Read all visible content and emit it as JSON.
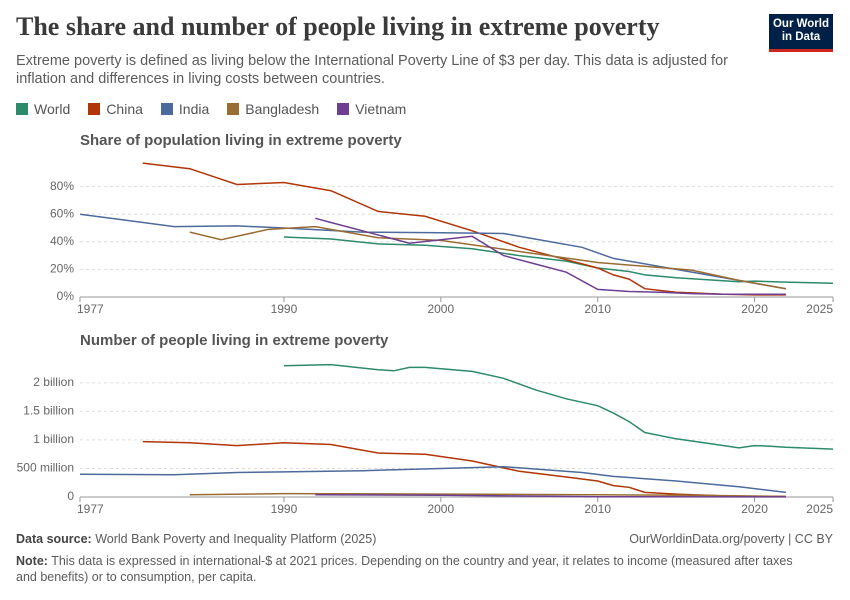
{
  "header": {
    "title": "The share and number of people living in extreme poverty",
    "subtitle": "Extreme poverty is defined as living below the International Poverty Line of $3 per day. This data is adjusted for inflation and differences in living costs between countries.",
    "logo": [
      "Our World",
      "in Data"
    ]
  },
  "chart_data": [
    {
      "type": "line",
      "title": "Share of population living in extreme poverty",
      "xlim": [
        1977,
        2025
      ],
      "xticks": [
        1977,
        1990,
        2000,
        2010,
        2020,
        2025
      ],
      "ylim": [
        0,
        100
      ],
      "yticks": [
        {
          "value": 0,
          "label": "0%"
        },
        {
          "value": 20,
          "label": "20%"
        },
        {
          "value": 40,
          "label": "40%"
        },
        {
          "value": 60,
          "label": "60%"
        },
        {
          "value": 80,
          "label": "80%"
        }
      ],
      "grid": true,
      "series": [
        {
          "name": "World",
          "color": "#2d8a6b",
          "x": [
            1990,
            1993,
            1996,
            1999,
            2002,
            2005,
            2008,
            2010,
            2012,
            2013,
            2015,
            2017,
            2019,
            2020,
            2022,
            2025
          ],
          "values": [
            43.5,
            42,
            38.5,
            37.5,
            35,
            30,
            26,
            21,
            18.5,
            16,
            14,
            12.5,
            11,
            11.5,
            10.8,
            10
          ]
        },
        {
          "name": "China",
          "color": "#b13507",
          "x": [
            1981,
            1984,
            1987,
            1990,
            1993,
            1996,
            1999,
            2002,
            2005,
            2008,
            2010,
            2011,
            2012,
            2013,
            2015,
            2016,
            2018,
            2020,
            2022
          ],
          "values": [
            97,
            93,
            81.5,
            83,
            77,
            62,
            58.5,
            48,
            36,
            27,
            21,
            16,
            13,
            6,
            3.5,
            3,
            2,
            1.5,
            1.5
          ]
        },
        {
          "name": "India",
          "color": "#4c6a9c",
          "x": [
            1977,
            1983,
            1987,
            1990,
            1995,
            2000,
            2004,
            2006,
            2009,
            2011,
            2012,
            2015,
            2017,
            2019,
            2021,
            2022
          ],
          "values": [
            60,
            51,
            51.5,
            50,
            47,
            46.5,
            46,
            42,
            36,
            28,
            26,
            20,
            16,
            12,
            8,
            6
          ]
        },
        {
          "name": "Bangladesh",
          "color": "#9a6c34",
          "x": [
            1984,
            1986,
            1989,
            1992,
            1996,
            2000,
            2005,
            2010,
            2016,
            2019,
            2022
          ],
          "values": [
            47,
            41.5,
            49,
            51,
            43,
            41,
            33,
            25,
            19.5,
            12,
            6
          ]
        },
        {
          "name": "Vietnam",
          "color": "#6d3e91",
          "x": [
            1992,
            1993,
            1998,
            2002,
            2004,
            2006,
            2008,
            2010,
            2012,
            2014,
            2016,
            2018,
            2020,
            2022
          ],
          "values": [
            57,
            54,
            39,
            44,
            30,
            24,
            18,
            5.5,
            4,
            3.5,
            2.5,
            2,
            2,
            2
          ]
        }
      ]
    },
    {
      "type": "line",
      "title": "Number of people living in extreme poverty",
      "xlim": [
        1977,
        2025
      ],
      "xticks": [
        1977,
        1990,
        2000,
        2010,
        2020,
        2025
      ],
      "ylim": [
        0,
        2400000000
      ],
      "yticks": [
        0,
        {
          "value": 500000000,
          "label": "500 million"
        },
        {
          "value": 1000000000,
          "label": "1 billion"
        },
        {
          "value": 1500000000,
          "label": "1.5 billion"
        },
        {
          "value": 2000000000,
          "label": "2 billion"
        }
      ],
      "grid": true,
      "series": [
        {
          "name": "World",
          "color": "#2d8a6b",
          "x": [
            1990,
            1993,
            1996,
            1997,
            1998,
            1999,
            2002,
            2004,
            2006,
            2008,
            2010,
            2011,
            2012,
            2013,
            2015,
            2017,
            2019,
            2020,
            2021,
            2022,
            2025
          ],
          "values": [
            2300000000,
            2320000000,
            2230000000,
            2210000000,
            2270000000,
            2270000000,
            2200000000,
            2080000000,
            1880000000,
            1720000000,
            1600000000,
            1470000000,
            1320000000,
            1130000000,
            1020000000,
            940000000,
            860000000,
            900000000,
            890000000,
            870000000,
            840000000
          ]
        },
        {
          "name": "China",
          "color": "#b13507",
          "x": [
            1981,
            1984,
            1987,
            1990,
            1993,
            1996,
            1999,
            2002,
            2005,
            2008,
            2010,
            2011,
            2012,
            2013,
            2015,
            2018,
            2020,
            2022
          ],
          "values": [
            970000000,
            950000000,
            900000000,
            950000000,
            920000000,
            770000000,
            750000000,
            630000000,
            450000000,
            350000000,
            280000000,
            200000000,
            170000000,
            80000000,
            50000000,
            20000000,
            10000000,
            10000000
          ]
        },
        {
          "name": "India",
          "color": "#4c6a9c",
          "x": [
            1977,
            1983,
            1987,
            1990,
            1995,
            2000,
            2004,
            2009,
            2011,
            2015,
            2019,
            2022
          ],
          "values": [
            400000000,
            390000000,
            430000000,
            440000000,
            460000000,
            500000000,
            530000000,
            430000000,
            360000000,
            280000000,
            180000000,
            80000000
          ]
        },
        {
          "name": "Bangladesh",
          "color": "#9a6c34",
          "x": [
            1984,
            1990,
            2000,
            2010,
            2016,
            2022
          ],
          "values": [
            40000000,
            60000000,
            50000000,
            40000000,
            30000000,
            10000000
          ]
        },
        {
          "name": "Vietnam",
          "color": "#6d3e91",
          "x": [
            1992,
            2000,
            2010,
            2022
          ],
          "values": [
            40000000,
            30000000,
            5000000,
            2000000
          ]
        }
      ]
    }
  ],
  "footer": {
    "source_label": "Data source:",
    "source": "World Bank Poverty and Inequality Platform (2025)",
    "url": "OurWorldinData.org/poverty | CC BY",
    "note_label": "Note:",
    "note": "This data is expressed in international-$ at 2021 prices. Depending on the country and year, it relates to income (measured after taxes and benefits) or to consumption, per capita."
  }
}
